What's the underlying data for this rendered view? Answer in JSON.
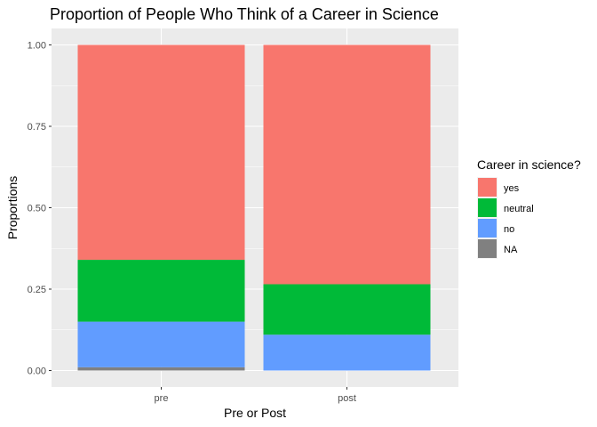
{
  "chart_data": {
    "type": "bar",
    "stacked": true,
    "title": "Proportion of People Who Think of a Career in Science",
    "xlabel": "Pre or Post",
    "ylabel": "Proportions",
    "categories": [
      "pre",
      "post"
    ],
    "ylim": [
      0,
      1
    ],
    "yticks": [
      0,
      0.25,
      0.5,
      0.75,
      1
    ],
    "ytick_labels": [
      "0.00",
      "0.25",
      "0.50",
      "0.75",
      "1.00"
    ],
    "grid": true,
    "legend": {
      "title": "Career in science?",
      "placement": "right"
    },
    "series": [
      {
        "name": "yes",
        "color": "#F8766D",
        "values": [
          0.66,
          0.735
        ]
      },
      {
        "name": "neutral",
        "color": "#00BA38",
        "values": [
          0.19,
          0.155
        ]
      },
      {
        "name": "no",
        "color": "#619CFF",
        "values": [
          0.14,
          0.11
        ]
      },
      {
        "name": "NA",
        "color": "#808080",
        "values": [
          0.01,
          0.0
        ]
      }
    ]
  }
}
